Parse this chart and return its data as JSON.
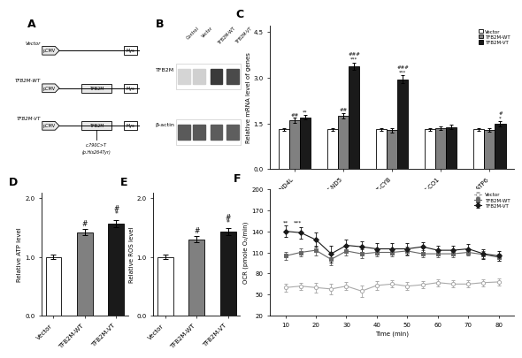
{
  "panel_A": {
    "label": "A",
    "constructs": [
      {
        "name": "Vector",
        "has_insert": false
      },
      {
        "name": "TFB2M-WT",
        "has_insert": true,
        "insert": "TFB2M"
      },
      {
        "name": "TFB2M-VT",
        "has_insert": true,
        "insert": "TFB2M"
      }
    ],
    "mutation_text1": "c.790C>T",
    "mutation_text2": "(p.His264Tyr)"
  },
  "panel_B": {
    "label": "B",
    "lanes": [
      "Control",
      "Vector",
      "TFB2M-WT",
      "TFB2M-VT"
    ],
    "tfb2m_intensities": [
      0.15,
      0.18,
      0.85,
      0.8
    ],
    "bactin_intensities": [
      0.75,
      0.78,
      0.8,
      0.77
    ]
  },
  "panel_C": {
    "label": "C",
    "categories": [
      "MT-ND4L",
      "MT-ND5",
      "MT-CYB",
      "MT-CO1",
      "MT-ATP6"
    ],
    "vector": [
      1.3,
      1.3,
      1.3,
      1.3,
      1.3
    ],
    "wt": [
      1.6,
      1.75,
      1.28,
      1.33,
      1.28
    ],
    "vt": [
      1.7,
      3.38,
      2.95,
      1.38,
      1.48
    ],
    "errors_vector": [
      0.05,
      0.05,
      0.05,
      0.05,
      0.05
    ],
    "errors_wt": [
      0.08,
      0.08,
      0.07,
      0.06,
      0.06
    ],
    "errors_vt": [
      0.08,
      0.12,
      0.12,
      0.08,
      0.08
    ],
    "ylabel": "Relative mRNA level of genes",
    "ylim": [
      0.0,
      4.7
    ],
    "yticks": [
      0.0,
      1.5,
      3.0,
      4.5
    ],
    "colors": [
      "white",
      "#808080",
      "#1a1a1a"
    ],
    "legend": [
      "Vector",
      "TFB2M-WT",
      "TFB2M-VT"
    ]
  },
  "panel_D": {
    "label": "D",
    "categories": [
      "Vector",
      "TFB2M-WT",
      "TFB2M-VT"
    ],
    "values": [
      1.0,
      1.42,
      1.57
    ],
    "errors": [
      0.04,
      0.05,
      0.06
    ],
    "ylabel": "Relative ATP level",
    "ylim": [
      0.0,
      2.1
    ],
    "yticks": [
      0.0,
      1.0,
      2.0
    ],
    "colors": [
      "white",
      "#808080",
      "#1a1a1a"
    ]
  },
  "panel_E": {
    "label": "E",
    "categories": [
      "Vector",
      "TFB2M-WT",
      "TFB2M-VT"
    ],
    "values": [
      1.0,
      1.3,
      1.43
    ],
    "errors": [
      0.04,
      0.05,
      0.06
    ],
    "ylabel": "Relative ROS level",
    "ylim": [
      0.0,
      2.1
    ],
    "yticks": [
      0.0,
      1.0,
      2.0
    ],
    "colors": [
      "white",
      "#808080",
      "#1a1a1a"
    ]
  },
  "panel_F": {
    "label": "F",
    "xlabel": "Time (min)",
    "ylabel": "OCR (pmole O₂/min)",
    "ylim": [
      20,
      200
    ],
    "yticks": [
      20,
      50,
      80,
      110,
      140,
      170,
      200
    ],
    "time": [
      10,
      15,
      20,
      25,
      30,
      35,
      40,
      45,
      50,
      55,
      60,
      65,
      70,
      75,
      80
    ],
    "vector": [
      60,
      62,
      60,
      58,
      62,
      55,
      63,
      65,
      62,
      64,
      67,
      65,
      65,
      67,
      68
    ],
    "wt": [
      105,
      110,
      113,
      100,
      112,
      108,
      110,
      110,
      112,
      108,
      108,
      108,
      110,
      107,
      103
    ],
    "vt": [
      140,
      138,
      128,
      108,
      120,
      118,
      115,
      115,
      115,
      118,
      113,
      113,
      115,
      108,
      105
    ],
    "errors_vector": [
      6,
      5,
      7,
      8,
      6,
      8,
      6,
      5,
      6,
      5,
      5,
      5,
      5,
      5,
      5
    ],
    "errors_wt": [
      6,
      6,
      7,
      8,
      7,
      6,
      6,
      6,
      6,
      5,
      5,
      5,
      5,
      5,
      5
    ],
    "errors_vt": [
      8,
      8,
      10,
      12,
      8,
      8,
      8,
      8,
      8,
      7,
      7,
      7,
      7,
      7,
      7
    ],
    "line_color_vector": "#aaaaaa",
    "line_color_wt": "#666666",
    "line_color_vt": "#1a1a1a",
    "legend": [
      "Vector",
      "TFB2M-WT",
      "TFB2M-VT"
    ]
  }
}
